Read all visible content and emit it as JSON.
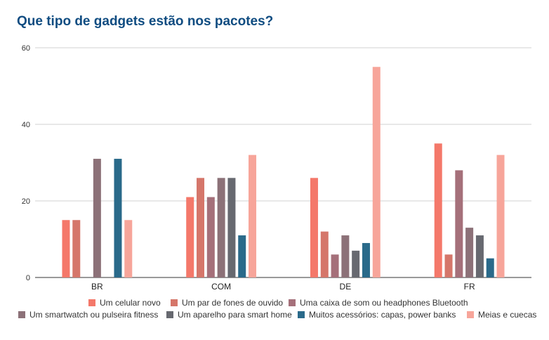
{
  "chart_data": {
    "type": "bar",
    "title": "Que tipo de gadgets estão nos pacotes?",
    "xlabel": "",
    "ylabel": "",
    "ylim": [
      0,
      60
    ],
    "yticks": [
      0,
      20,
      40,
      60
    ],
    "grid": true,
    "legend_position": "bottom",
    "categories": [
      "BR",
      "COM",
      "DE",
      "FR"
    ],
    "series": [
      {
        "name": "Um celular novo",
        "color": "#f4786a",
        "values": [
          15,
          21,
          26,
          35
        ]
      },
      {
        "name": "Um par de fones de ouvido",
        "color": "#d5766a",
        "values": [
          15,
          26,
          12,
          6
        ]
      },
      {
        "name": "Uma caixa de som ou headphones Bluetooth",
        "color": "#a5707a",
        "values": [
          0,
          21,
          6,
          28
        ]
      },
      {
        "name": "Um smartwatch ou pulseira fitness",
        "color": "#8c7178",
        "values": [
          31,
          26,
          11,
          13
        ]
      },
      {
        "name": "Um aparelho para smart home",
        "color": "#676970",
        "values": [
          0,
          26,
          7,
          11
        ]
      },
      {
        "name": "Muitos acessórios: capas, power banks",
        "color": "#2a6a8a",
        "values": [
          31,
          11,
          9,
          5
        ]
      },
      {
        "name": "Meias e cuecas",
        "color": "#f7a59a",
        "values": [
          15,
          32,
          55,
          32
        ]
      }
    ]
  }
}
